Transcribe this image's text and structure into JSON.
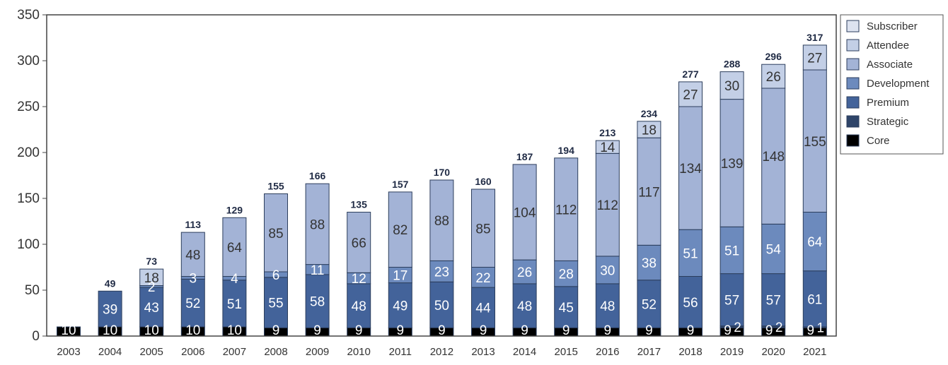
{
  "chart_data": {
    "type": "bar",
    "stacked": true,
    "categories": [
      "2003",
      "2004",
      "2005",
      "2006",
      "2007",
      "2008",
      "2009",
      "2010",
      "2011",
      "2012",
      "2013",
      "2014",
      "2015",
      "2016",
      "2017",
      "2018",
      "2019",
      "2020",
      "2021"
    ],
    "series": [
      {
        "name": "Core",
        "color": "#000000",
        "values": [
          10,
          10,
          10,
          10,
          10,
          9,
          9,
          9,
          9,
          9,
          9,
          9,
          9,
          9,
          9,
          9,
          9,
          9,
          9
        ]
      },
      {
        "name": "Strategic",
        "color": "#2e4469",
        "values": [
          0,
          0,
          0,
          0,
          0,
          0,
          0,
          0,
          0,
          0,
          0,
          0,
          0,
          0,
          0,
          0,
          2,
          2,
          1
        ]
      },
      {
        "name": "Premium",
        "color": "#43639a",
        "values": [
          0,
          39,
          43,
          52,
          51,
          55,
          58,
          48,
          49,
          50,
          44,
          48,
          45,
          48,
          52,
          56,
          57,
          57,
          61
        ]
      },
      {
        "name": "Development",
        "color": "#6c8abd",
        "values": [
          0,
          0,
          2,
          3,
          4,
          6,
          11,
          12,
          17,
          23,
          22,
          26,
          28,
          30,
          38,
          51,
          51,
          54,
          64
        ]
      },
      {
        "name": "Associate",
        "color": "#a3b3d6",
        "values": [
          0,
          0,
          0,
          48,
          64,
          85,
          88,
          66,
          82,
          88,
          85,
          104,
          112,
          112,
          117,
          134,
          139,
          148,
          155
        ]
      },
      {
        "name": "Attendee",
        "color": "#c3cfe6",
        "values": [
          0,
          0,
          18,
          0,
          0,
          0,
          0,
          0,
          0,
          0,
          0,
          0,
          0,
          14,
          18,
          27,
          30,
          26,
          27
        ]
      },
      {
        "name": "Subscriber",
        "color": "#dde3f0",
        "values": [
          0,
          0,
          0,
          0,
          0,
          0,
          0,
          0,
          0,
          0,
          0,
          0,
          0,
          0,
          0,
          0,
          0,
          0,
          0
        ]
      }
    ],
    "totals": [
      10,
      49,
      73,
      113,
      129,
      155,
      166,
      135,
      157,
      170,
      160,
      187,
      194,
      213,
      234,
      277,
      288,
      296,
      317
    ],
    "y_ticks": [
      0,
      50,
      100,
      150,
      200,
      250,
      300,
      350
    ],
    "ylim": [
      0,
      350
    ],
    "grid": false,
    "legend_position": "top-right",
    "title": "",
    "xlabel": "",
    "ylabel": ""
  }
}
